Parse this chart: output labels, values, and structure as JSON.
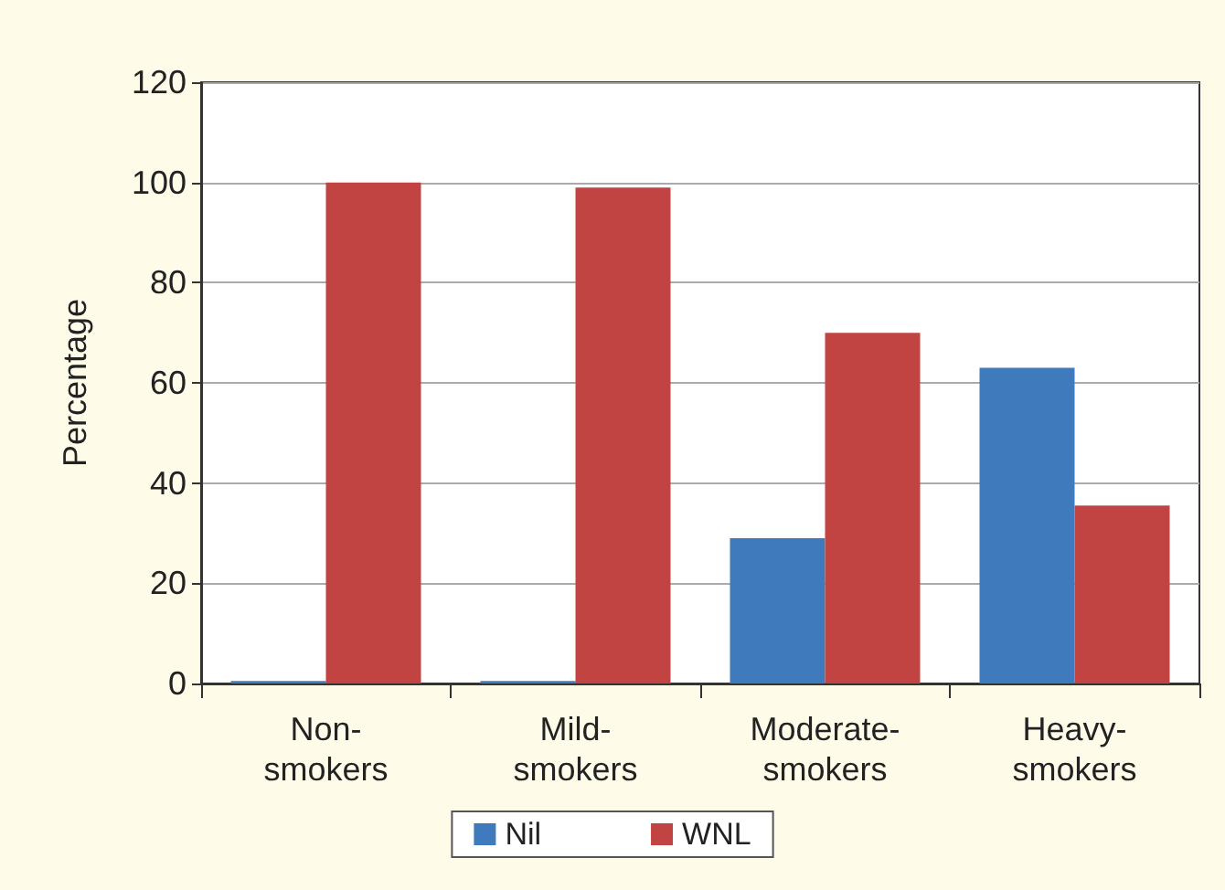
{
  "chart_data": {
    "type": "bar",
    "ylabel": "Percentage",
    "categories": [
      "Non-\nsmokers",
      "Mild-\nsmokers",
      "Moderate-\nsmokers",
      "Heavy-\nsmokers"
    ],
    "series": [
      {
        "name": "Nil",
        "color": "#3f7abd",
        "values": [
          0.5,
          0.5,
          29,
          63
        ]
      },
      {
        "name": "WNL",
        "color": "#c14442",
        "values": [
          100,
          99,
          70,
          35.5
        ]
      }
    ],
    "ylim": [
      0,
      120
    ],
    "yticks": [
      0,
      20,
      40,
      60,
      80,
      100,
      120
    ],
    "grid": "y",
    "legend": "bottom"
  }
}
